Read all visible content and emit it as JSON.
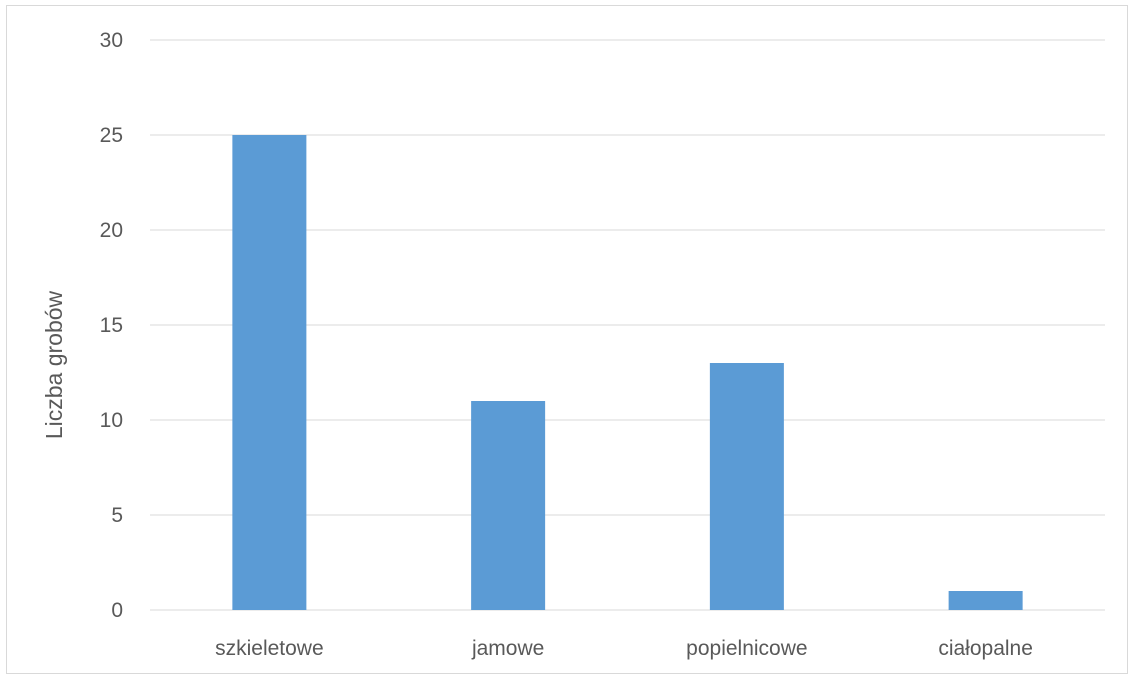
{
  "chart_data": {
    "type": "bar",
    "categories": [
      "szkieletowe",
      "jamowe",
      "popielnicowe",
      "ciałopalne"
    ],
    "values": [
      25,
      11,
      13,
      1
    ],
    "title": "",
    "xlabel": "",
    "ylabel": "Liczba grobów",
    "ylim": [
      0,
      30
    ],
    "yticks": [
      0,
      5,
      10,
      15,
      20,
      25,
      30
    ],
    "grid": true,
    "legend": "none",
    "colors": {
      "bar": "#5b9bd5",
      "grid": "#d9d9d9",
      "text": "#595959"
    }
  }
}
